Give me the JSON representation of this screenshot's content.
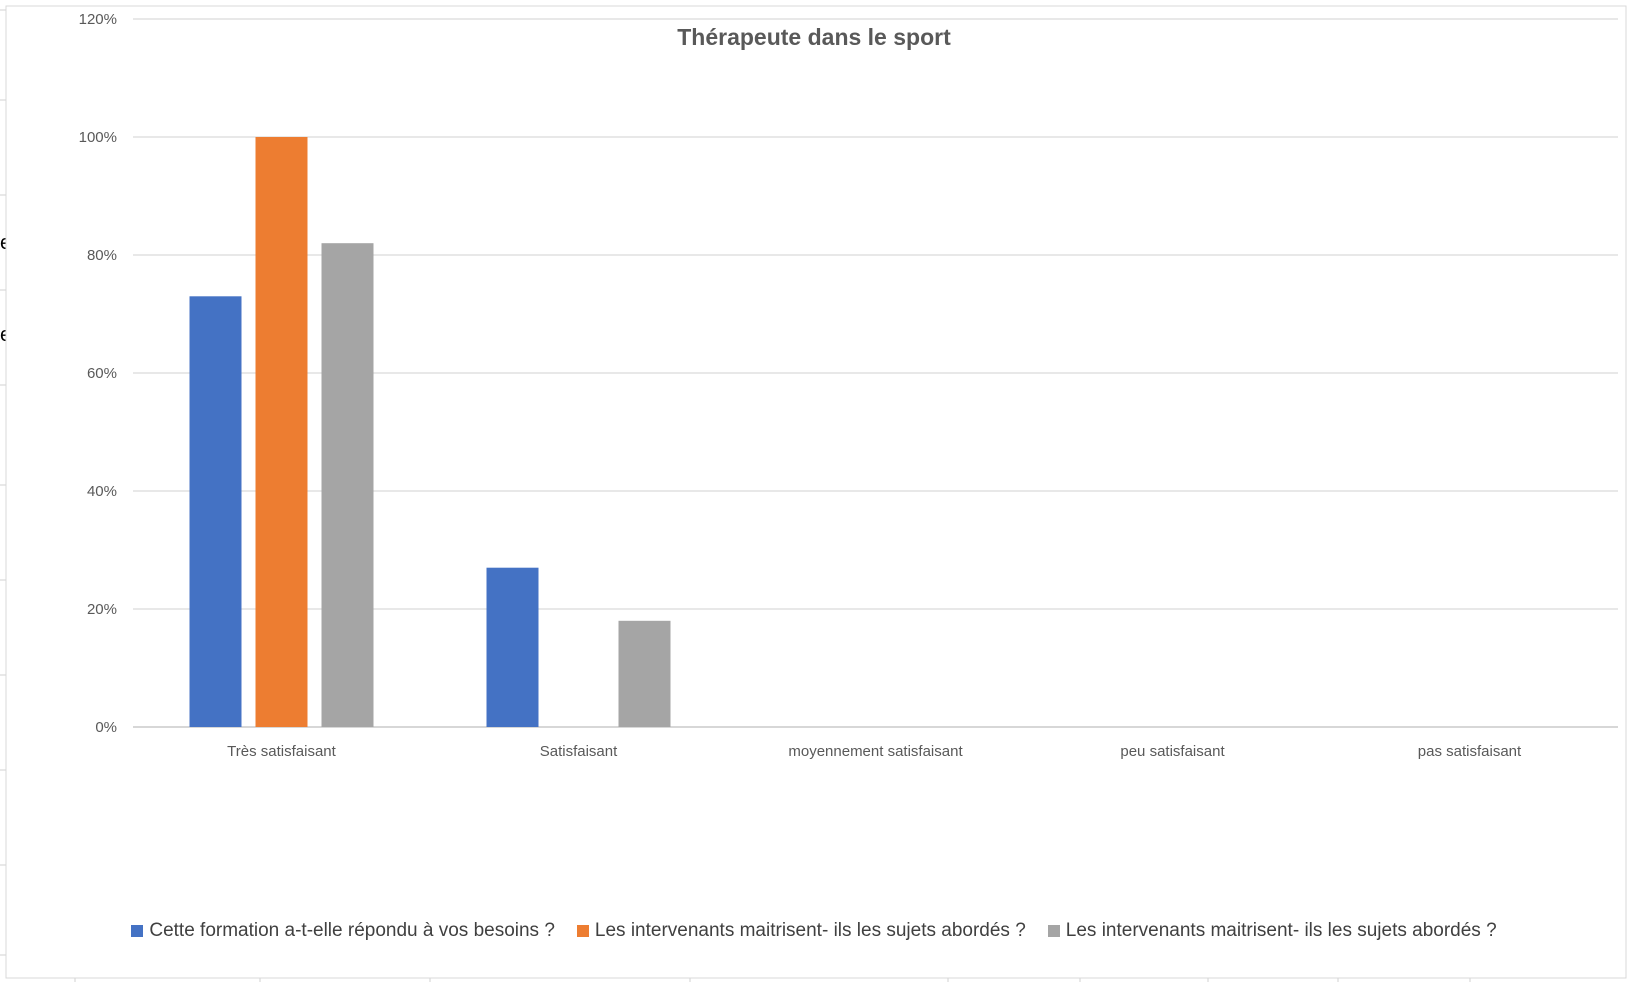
{
  "chart_data": {
    "type": "bar",
    "title": "Thérapeute dans le sport",
    "xlabel": "",
    "ylabel": "",
    "categories": [
      "Très satisfaisant",
      "Satisfaisant",
      "moyennement satisfaisant",
      "peu satisfaisant",
      "pas satisfaisant"
    ],
    "series": [
      {
        "name": "Cette formation a-t-elle répondu à vos besoins ?",
        "color": "#4472C4",
        "values": [
          73,
          27,
          0,
          0,
          0
        ]
      },
      {
        "name": "Les intervenants maitrisent- ils les sujets abordés ?",
        "color": "#ED7D31",
        "values": [
          100,
          0,
          0,
          0,
          0
        ]
      },
      {
        "name": "Les intervenants maitrisent- ils les sujets abordés ?",
        "color": "#A5A5A5",
        "values": [
          82,
          18,
          0,
          0,
          0
        ]
      }
    ],
    "ylim": [
      0,
      120
    ],
    "yticks": [
      "0%",
      "20%",
      "40%",
      "60%",
      "80%",
      "100%",
      "120%"
    ],
    "grid": true,
    "legend_position": "bottom"
  }
}
